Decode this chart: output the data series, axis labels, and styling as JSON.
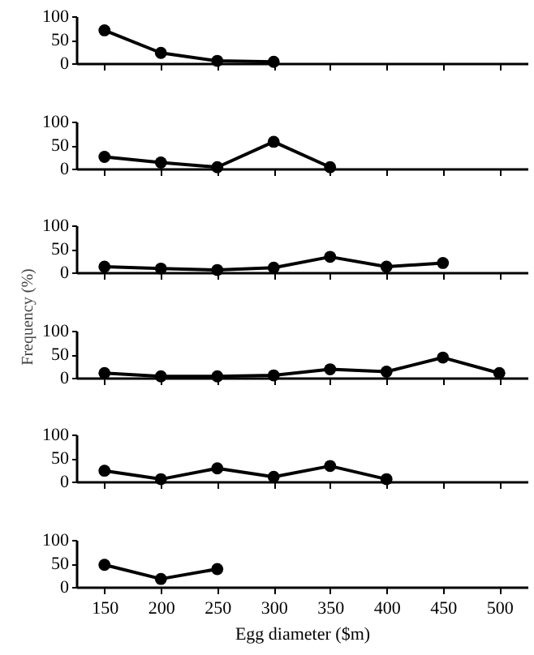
{
  "chart_data": [
    {
      "type": "line",
      "x": [
        150,
        200,
        250,
        300
      ],
      "values": [
        70,
        22,
        5,
        3
      ],
      "color": "#000000",
      "xlim": [
        125,
        525
      ],
      "xticks": [
        150,
        200,
        250,
        300,
        350,
        400,
        450,
        500
      ],
      "ylim": [
        0,
        100
      ],
      "yticks": [
        0,
        50,
        100
      ],
      "tick_labels": "y",
      "marker": "circle",
      "grid": false
    },
    {
      "type": "line",
      "x": [
        150,
        200,
        250,
        300,
        350
      ],
      "values": [
        25,
        13,
        3,
        57,
        3
      ],
      "color": "#000000",
      "xlim": [
        125,
        525
      ],
      "xticks": [
        150,
        200,
        250,
        300,
        350,
        400,
        450,
        500
      ],
      "ylim": [
        0,
        100
      ],
      "yticks": [
        0,
        50,
        100
      ],
      "tick_labels": "y",
      "marker": "circle",
      "grid": false
    },
    {
      "type": "line",
      "x": [
        150,
        200,
        250,
        300,
        350,
        400,
        450
      ],
      "values": [
        12,
        8,
        5,
        10,
        33,
        12,
        20
      ],
      "color": "#000000",
      "xlim": [
        125,
        525
      ],
      "xticks": [
        150,
        200,
        250,
        300,
        350,
        400,
        450,
        500
      ],
      "ylim": [
        0,
        100
      ],
      "yticks": [
        0,
        50,
        100
      ],
      "tick_labels": "y",
      "marker": "circle",
      "grid": false
    },
    {
      "type": "line",
      "x": [
        150,
        200,
        250,
        300,
        350,
        400,
        450,
        500
      ],
      "values": [
        10,
        3,
        3,
        5,
        18,
        13,
        43,
        10
      ],
      "color": "#000000",
      "ylabel": "Frequency (%)",
      "xlim": [
        125,
        525
      ],
      "xticks": [
        150,
        200,
        250,
        300,
        350,
        400,
        450,
        500
      ],
      "ylim": [
        0,
        100
      ],
      "yticks": [
        0,
        50,
        100
      ],
      "tick_labels": "y",
      "marker": "circle",
      "grid": false
    },
    {
      "type": "line",
      "x": [
        150,
        200,
        250,
        300,
        350,
        400
      ],
      "values": [
        23,
        5,
        28,
        10,
        33,
        5
      ],
      "color": "#000000",
      "xlim": [
        125,
        525
      ],
      "xticks": [
        150,
        200,
        250,
        300,
        350,
        400,
        450,
        500
      ],
      "ylim": [
        0,
        100
      ],
      "yticks": [
        0,
        50,
        100
      ],
      "tick_labels": "y",
      "marker": "circle",
      "grid": false
    },
    {
      "type": "line",
      "x": [
        150,
        200,
        250
      ],
      "values": [
        47,
        17,
        38
      ],
      "color": "#000000",
      "xlabel": "Egg diameter ($m)",
      "xlim": [
        125,
        525
      ],
      "xticks": [
        150,
        200,
        250,
        300,
        350,
        400,
        450,
        500
      ],
      "ylim": [
        0,
        100
      ],
      "yticks": [
        0,
        50,
        100
      ],
      "marker": "circle",
      "grid": false
    }
  ]
}
